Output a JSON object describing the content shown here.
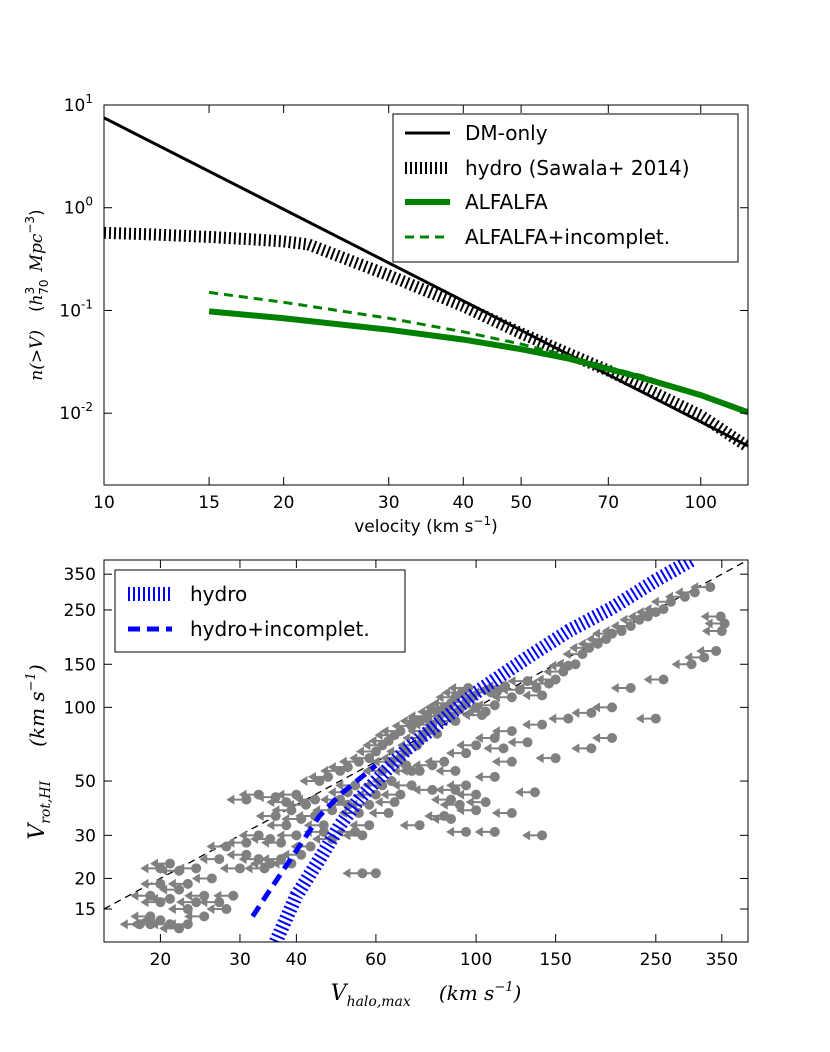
{
  "chart_data": [
    {
      "type": "line",
      "xscale": "log",
      "yscale": "log",
      "xlim": [
        10,
        120
      ],
      "ylim": [
        0.002,
        10
      ],
      "xlabel": "velocity   (km s⁻¹)",
      "ylabel": "n(>V)   (h₇₀³ Mpc⁻³)",
      "xticks": [
        10,
        15,
        20,
        30,
        40,
        50,
        70,
        100
      ],
      "xtick_labels": [
        "10",
        "15",
        "20",
        "30",
        "40",
        "50",
        "70",
        "100"
      ],
      "yticks": [
        10,
        1,
        0.1,
        0.01
      ],
      "ytick_labels": [
        {
          "base": "10",
          "exp": "1"
        },
        {
          "base": "10",
          "exp": "0"
        },
        {
          "base": "10",
          "exp": "-1"
        },
        {
          "base": "10",
          "exp": "-2"
        }
      ],
      "legend_position": "top-right",
      "series": [
        {
          "name": "DM-only",
          "color": "#000000",
          "style": "solid",
          "x": [
            10,
            120
          ],
          "y": [
            7.5,
            0.0048
          ]
        },
        {
          "name": "hydro (Sawala+ 2014)",
          "color": "#000000",
          "style": "hatched",
          "x": [
            10,
            12,
            15,
            18,
            20,
            22,
            25,
            30,
            40,
            50,
            60,
            70,
            80,
            100,
            120
          ],
          "y": [
            0.57,
            0.55,
            0.52,
            0.49,
            0.47,
            0.44,
            0.33,
            0.22,
            0.11,
            0.06,
            0.038,
            0.026,
            0.018,
            0.0095,
            0.0047
          ]
        },
        {
          "name": "ALFALFA",
          "color": "#008000",
          "style": "thick",
          "x": [
            15,
            20,
            30,
            40,
            50,
            60,
            70,
            80,
            100,
            120
          ],
          "y": [
            0.098,
            0.084,
            0.065,
            0.052,
            0.042,
            0.034,
            0.027,
            0.022,
            0.015,
            0.0102
          ]
        },
        {
          "name": "ALFALFA+incomplet.",
          "color": "#008000",
          "style": "dashed",
          "x": [
            15,
            20,
            30,
            40,
            50,
            60,
            70,
            80,
            100,
            120
          ],
          "y": [
            0.15,
            0.12,
            0.084,
            0.062,
            0.047,
            0.036,
            0.028,
            0.023,
            0.015,
            0.0102
          ]
        }
      ]
    },
    {
      "type": "scatter",
      "xscale": "log",
      "yscale": "log",
      "xlim": [
        15,
        400
      ],
      "ylim": [
        11,
        400
      ],
      "xlabel": "V_halo,max   (km s⁻¹)",
      "ylabel": "V_rot,HI   (km s⁻¹)",
      "xticks": [
        20,
        30,
        40,
        60,
        100,
        150,
        250,
        350
      ],
      "xtick_labels": [
        "20",
        "30",
        "40",
        "60",
        "100",
        "150",
        "250",
        "350"
      ],
      "yticks": [
        15,
        20,
        30,
        50,
        100,
        150,
        250,
        350
      ],
      "ytick_labels": [
        "15",
        "20",
        "30",
        "50",
        "100",
        "150",
        "250",
        "350"
      ],
      "legend_position": "top-left",
      "marker": "upper-limit arrow pointing left",
      "point_color": "#808080",
      "reference_line": {
        "name": "1:1",
        "color": "#000000",
        "style": "dashed",
        "x": [
          15,
          400
        ],
        "y": [
          15,
          400
        ]
      },
      "series": [
        {
          "name": "hydro",
          "color": "#0000ff",
          "style": "hatched",
          "x": [
            36,
            40,
            45,
            50,
            55,
            60,
            70,
            80,
            100,
            130,
            160,
            200,
            250,
            300
          ],
          "y": [
            11,
            17,
            24,
            33,
            42,
            50,
            67,
            82,
            115,
            160,
            205,
            255,
            330,
            400
          ]
        },
        {
          "name": "hydro+incomplet.",
          "color": "#0000ff",
          "style": "dashed",
          "x": [
            32,
            35,
            40,
            45,
            50,
            60
          ],
          "y": [
            14,
            18,
            26,
            36,
            44,
            58
          ]
        }
      ],
      "points": [
        [
          18,
          13
        ],
        [
          19,
          13
        ],
        [
          20,
          13.5
        ],
        [
          21,
          13
        ],
        [
          19,
          14
        ],
        [
          22,
          12.5
        ],
        [
          23,
          13
        ],
        [
          20,
          16
        ],
        [
          21,
          16.5
        ],
        [
          24,
          16
        ],
        [
          19,
          17
        ],
        [
          22,
          18
        ],
        [
          20,
          19
        ],
        [
          23,
          19
        ],
        [
          25,
          17
        ],
        [
          28,
          15
        ],
        [
          27,
          16
        ],
        [
          20,
          22
        ],
        [
          21,
          23
        ],
        [
          22,
          21.5
        ],
        [
          24,
          22
        ],
        [
          26,
          20
        ],
        [
          29,
          17
        ],
        [
          25,
          14
        ],
        [
          23,
          15
        ],
        [
          28,
          27
        ],
        [
          27,
          24
        ],
        [
          30,
          22
        ],
        [
          31,
          25
        ],
        [
          33,
          24
        ],
        [
          34,
          22
        ],
        [
          31,
          28
        ],
        [
          33,
          30
        ],
        [
          35,
          29
        ],
        [
          37,
          28
        ],
        [
          40,
          30
        ],
        [
          38,
          33
        ],
        [
          36,
          36
        ],
        [
          39,
          38
        ],
        [
          41,
          35
        ],
        [
          42,
          40
        ],
        [
          44,
          42
        ],
        [
          38,
          41
        ],
        [
          40,
          44
        ],
        [
          36,
          43
        ],
        [
          33,
          44
        ],
        [
          31,
          42
        ],
        [
          44,
          36
        ],
        [
          46,
          31
        ],
        [
          48,
          29
        ],
        [
          43,
          27
        ],
        [
          41,
          25
        ],
        [
          37,
          24
        ],
        [
          35,
          23
        ],
        [
          39,
          23
        ],
        [
          46,
          33
        ],
        [
          48,
          38
        ],
        [
          50,
          42
        ],
        [
          52,
          45
        ],
        [
          54,
          48
        ],
        [
          52,
          40
        ],
        [
          55,
          37
        ],
        [
          58,
          40
        ],
        [
          60,
          44
        ],
        [
          62,
          48
        ],
        [
          65,
          50
        ],
        [
          58,
          33
        ],
        [
          56,
          30
        ],
        [
          60,
          21
        ],
        [
          56,
          21
        ],
        [
          54,
          31
        ],
        [
          62,
          55
        ],
        [
          65,
          60
        ],
        [
          68,
          62
        ],
        [
          70,
          58
        ],
        [
          72,
          55
        ],
        [
          70,
          66
        ],
        [
          74,
          70
        ],
        [
          76,
          75
        ],
        [
          78,
          80
        ],
        [
          80,
          85
        ],
        [
          82,
          78
        ],
        [
          78,
          90
        ],
        [
          84,
          95
        ],
        [
          86,
          100
        ],
        [
          88,
          92
        ],
        [
          90,
          88
        ],
        [
          92,
          98
        ],
        [
          95,
          105
        ],
        [
          98,
          110
        ],
        [
          100,
          100
        ],
        [
          103,
          93
        ],
        [
          105,
          96
        ],
        [
          110,
          102
        ],
        [
          108,
          115
        ],
        [
          112,
          118
        ],
        [
          116,
          122
        ],
        [
          120,
          110
        ],
        [
          125,
          118
        ],
        [
          130,
          128
        ],
        [
          136,
          120
        ],
        [
          140,
          112
        ],
        [
          145,
          125
        ],
        [
          150,
          130
        ],
        [
          156,
          140
        ],
        [
          160,
          148
        ],
        [
          166,
          150
        ],
        [
          172,
          165
        ],
        [
          178,
          175
        ],
        [
          186,
          182
        ],
        [
          194,
          190
        ],
        [
          200,
          200
        ],
        [
          210,
          205
        ],
        [
          220,
          215
        ],
        [
          230,
          228
        ],
        [
          240,
          235
        ],
        [
          250,
          245
        ],
        [
          260,
          252
        ],
        [
          270,
          270
        ],
        [
          290,
          283
        ],
        [
          305,
          295
        ],
        [
          330,
          310
        ],
        [
          350,
          205
        ],
        [
          355,
          220
        ],
        [
          348,
          235
        ],
        [
          340,
          170
        ],
        [
          320,
          160
        ],
        [
          300,
          150
        ],
        [
          260,
          130
        ],
        [
          220,
          120
        ],
        [
          200,
          100
        ],
        [
          180,
          95
        ],
        [
          160,
          90
        ],
        [
          140,
          85
        ],
        [
          120,
          80
        ],
        [
          110,
          75
        ],
        [
          100,
          70
        ],
        [
          95,
          65
        ],
        [
          85,
          60
        ],
        [
          80,
          58
        ],
        [
          75,
          55
        ],
        [
          90,
          55
        ],
        [
          120,
          60
        ],
        [
          150,
          62
        ],
        [
          115,
          68
        ],
        [
          130,
          72
        ],
        [
          250,
          90
        ],
        [
          200,
          75
        ],
        [
          180,
          68
        ],
        [
          135,
          45
        ],
        [
          110,
          52
        ],
        [
          95,
          48
        ],
        [
          90,
          46
        ],
        [
          88,
          42
        ],
        [
          92,
          40
        ],
        [
          100,
          38
        ],
        [
          85,
          36
        ],
        [
          75,
          33
        ],
        [
          72,
          48
        ],
        [
          68,
          44
        ],
        [
          66,
          41
        ],
        [
          64,
          37
        ],
        [
          80,
          46
        ],
        [
          100,
          44
        ],
        [
          88,
          35
        ],
        [
          95,
          31
        ],
        [
          110,
          31
        ],
        [
          140,
          30
        ],
        [
          120,
          37
        ],
        [
          105,
          41
        ],
        [
          45,
          50
        ],
        [
          47,
          52
        ],
        [
          50,
          55
        ],
        [
          52,
          57
        ],
        [
          55,
          60
        ],
        [
          58,
          62
        ],
        [
          60,
          66
        ],
        [
          62,
          70
        ],
        [
          64,
          73
        ],
        [
          66,
          77
        ],
        [
          68,
          80
        ],
        [
          72,
          84
        ],
        [
          75,
          88
        ],
        [
          78,
          92
        ],
        [
          82,
          96
        ],
        [
          85,
          100
        ],
        [
          88,
          104
        ],
        [
          90,
          110
        ],
        [
          93,
          115
        ],
        [
          96,
          120
        ]
      ]
    }
  ],
  "legend1": {
    "dm_only": "DM-only",
    "hydro": "hydro (Sawala+ 2014)",
    "alfalfa": "ALFALFA",
    "alfalfa_inc": "ALFALFA+incomplet."
  },
  "legend2": {
    "hydro": "hydro",
    "hydro_inc": "hydro+incomplet."
  },
  "axes1": {
    "xlabel": "velocity   (km s",
    "xlabel_sup": "−1",
    "xlabel_end": ")",
    "ylabel_n": "n(>V)",
    "ylabel_h": "h",
    "ylabel_h_sup": "3",
    "ylabel_h_sub": "70",
    "ylabel_unit": "Mpc",
    "ylabel_unit_sup": "−3"
  },
  "axes2": {
    "xlabel_v": "V",
    "xlabel_sub": "halo,max",
    "xlabel_unit": "(km s",
    "xlabel_sup": "−1",
    "ylabel_v": "V",
    "ylabel_sub": "rot,HI",
    "ylabel_unit": "(km s",
    "ylabel_sup": "−1"
  },
  "colors": {
    "dm": "#000000",
    "alfalfa": "#008000",
    "hydro2": "#0000ff",
    "points": "#808080"
  }
}
